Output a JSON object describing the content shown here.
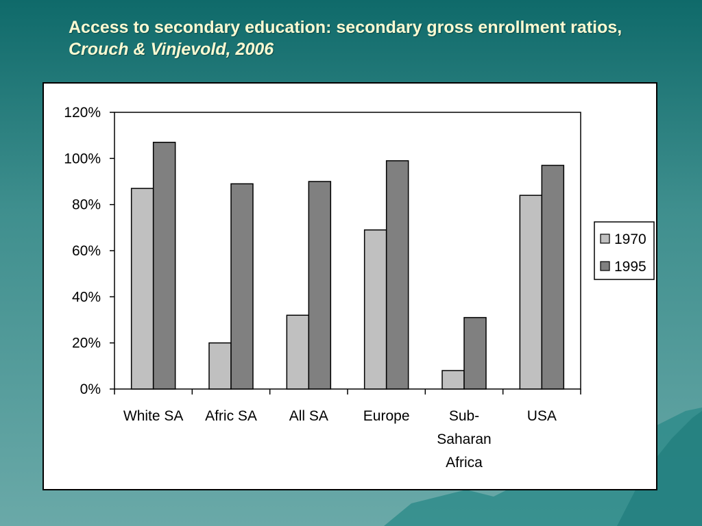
{
  "slide": {
    "title_main": "Access to secondary education: secondary gross enrollment ratios, ",
    "title_citation": "Crouch &  Vinjevold, 2006"
  },
  "colors": {
    "background_top": "#0f6a6a",
    "background_bottom": "#6aa9a8",
    "title_text": "#fafad2",
    "series_1970": "#c0c0c0",
    "series_1995": "#808080"
  },
  "chart_data": {
    "type": "bar",
    "title": "",
    "xlabel": "",
    "ylabel": "",
    "categories": [
      [
        "White SA"
      ],
      [
        "Afric SA"
      ],
      [
        "All SA"
      ],
      [
        "Europe"
      ],
      [
        "Sub-",
        "Saharan",
        "Africa"
      ],
      [
        "USA"
      ]
    ],
    "series": [
      {
        "name": "1970",
        "color": "#c0c0c0",
        "values": [
          87,
          20,
          32,
          69,
          8,
          84
        ]
      },
      {
        "name": "1995",
        "color": "#808080",
        "values": [
          107,
          89,
          90,
          99,
          31,
          97
        ]
      }
    ],
    "ylim": [
      0,
      120
    ],
    "yticks": [
      "0%",
      "20%",
      "40%",
      "60%",
      "80%",
      "100%",
      "120%"
    ],
    "grid": false,
    "legend_position": "right"
  }
}
